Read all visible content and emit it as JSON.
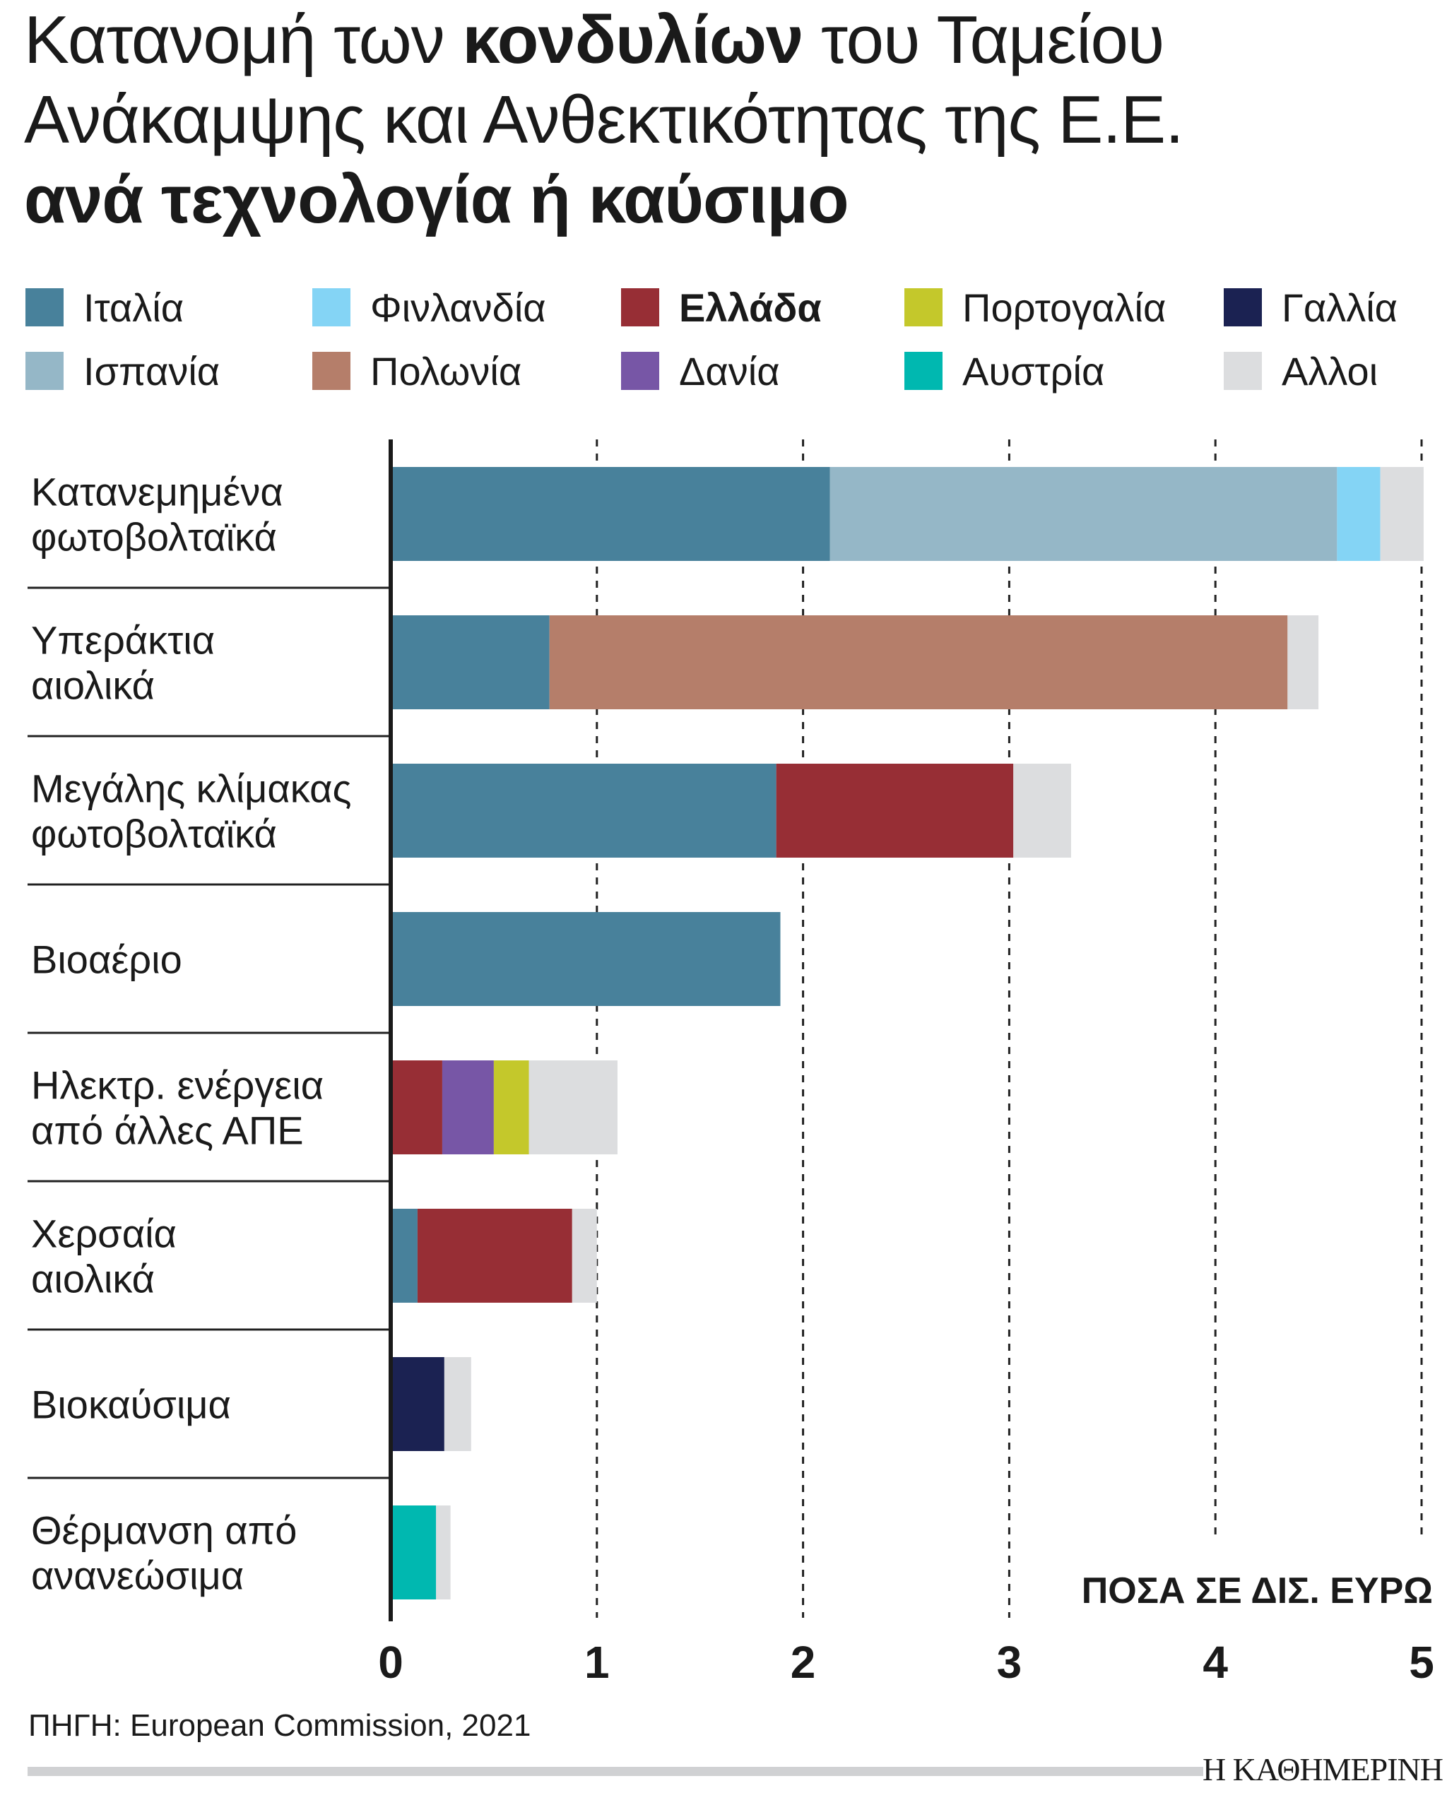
{
  "title": {
    "line1_a": "Κατανομή των ",
    "line1_b": "κονδυλίων",
    "line1_c": " του Ταμείου",
    "line2": "Ανάκαμψης και Ανθεκτικότητας της Ε.Ε.",
    "line3": "ανά τεχνολογία ή καύσιμο"
  },
  "legend": [
    {
      "label": "Ιταλία",
      "color": "#48819b"
    },
    {
      "label": "Φινλανδία",
      "color": "#84d4f5"
    },
    {
      "label": "Ελλάδα",
      "color": "#972e35",
      "bold": true
    },
    {
      "label": "Πορτογαλία",
      "color": "#c4c82b"
    },
    {
      "label": "Γαλλία",
      "color": "#1b2252"
    },
    {
      "label": "Ισπανία",
      "color": "#95b7c7"
    },
    {
      "label": "Πολωνία",
      "color": "#b57e6a"
    },
    {
      "label": "Δανία",
      "color": "#7756a6"
    },
    {
      "label": "Αυστρία",
      "color": "#00b8b0"
    },
    {
      "label": "Αλλοι",
      "color": "#dcdddf"
    }
  ],
  "chart_data": {
    "type": "bar",
    "orientation": "horizontal",
    "stacked": true,
    "categories": [
      [
        "Κατανεμημένα",
        "φωτοβολταϊκά"
      ],
      [
        "Υπεράκτια",
        "αιολικά"
      ],
      [
        "Μεγάλης κλίμακας",
        "φωτοβολταϊκά"
      ],
      [
        "Βιοαέριο"
      ],
      [
        "Ηλεκτρ. ενέργεια",
        "από άλλες ΑΠΕ"
      ],
      [
        "Χερσαία",
        "αιολικά"
      ],
      [
        "Βιοκαύσιμα"
      ],
      [
        "Θέρμανση από",
        "ανανεώσιμα"
      ]
    ],
    "series": [
      {
        "name": "Ιταλία",
        "values": [
          2.13,
          0.77,
          1.87,
          1.89,
          0,
          0.13,
          0,
          0
        ]
      },
      {
        "name": "Ισπανία",
        "values": [
          2.46,
          0,
          0,
          0,
          0,
          0,
          0,
          0
        ]
      },
      {
        "name": "Φινλανδία",
        "values": [
          0.21,
          0,
          0,
          0,
          0,
          0,
          0,
          0
        ]
      },
      {
        "name": "Πολωνία",
        "values": [
          0,
          3.58,
          0,
          0,
          0,
          0,
          0,
          0
        ]
      },
      {
        "name": "Ελλάδα",
        "values": [
          0,
          0,
          1.15,
          0,
          0.25,
          0.75,
          0,
          0
        ]
      },
      {
        "name": "Δανία",
        "values": [
          0,
          0,
          0,
          0,
          0.25,
          0,
          0,
          0
        ]
      },
      {
        "name": "Πορτογαλία",
        "values": [
          0,
          0,
          0,
          0,
          0.17,
          0,
          0,
          0
        ]
      },
      {
        "name": "Γαλλία",
        "values": [
          0,
          0,
          0,
          0,
          0,
          0,
          0.26,
          0
        ]
      },
      {
        "name": "Αυστρία",
        "values": [
          0,
          0,
          0,
          0,
          0,
          0,
          0,
          0.22
        ]
      },
      {
        "name": "Αλλοι",
        "values": [
          0.21,
          0.15,
          0.28,
          0,
          0.43,
          0.12,
          0.13,
          0.07
        ]
      }
    ],
    "xlim": [
      0,
      5
    ],
    "xticks": [
      "0",
      "1",
      "2",
      "3",
      "4",
      "5"
    ],
    "xlabel": "ΠΟΣΑ ΣΕ ΔΙΣ. ΕΥΡΩ",
    "grid": "vertical dotted",
    "legend_placement": "top"
  },
  "source": "ΠΗΓΗ: European Commission, 2021",
  "logo": "Η ΚΑΘΗΜΕΡΙΝΗ"
}
